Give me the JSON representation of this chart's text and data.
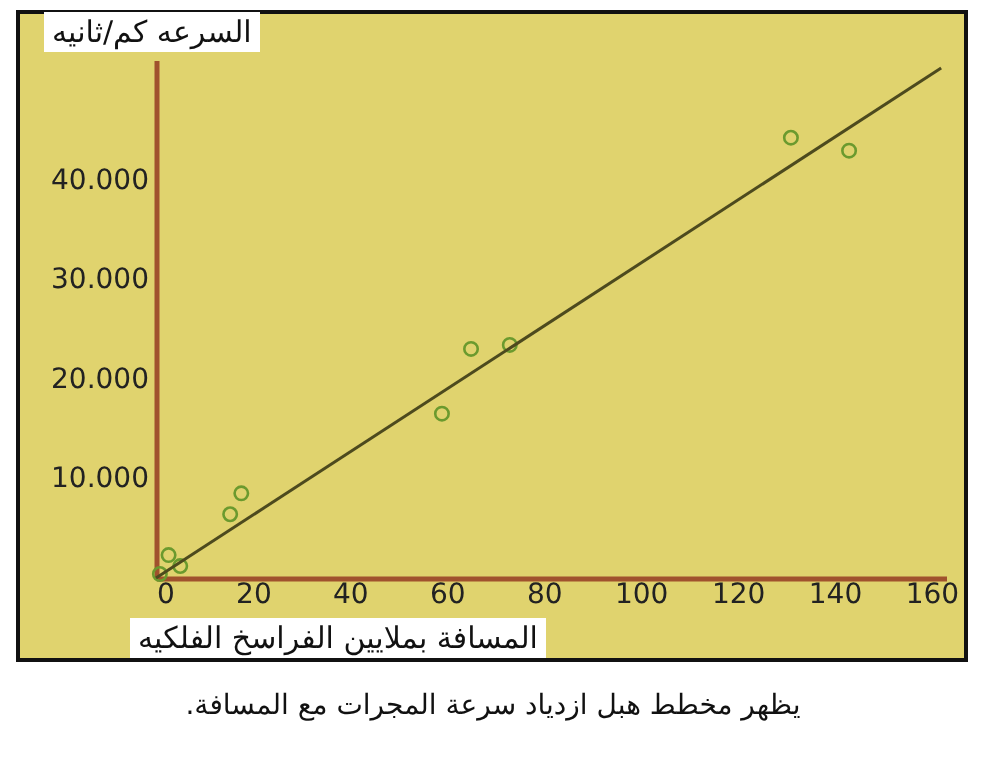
{
  "chart_data": {
    "type": "scatter",
    "xlabel": "المسافة بملايين الفراسخ الفلكيه",
    "ylabel": "السرعه كم/ثانيه",
    "annotations": [
      "يظهر مخطط هبل ازدياد سرعة المجرات مع المسافة."
    ],
    "xlim": [
      0,
      163
    ],
    "ylim": [
      0,
      52000
    ],
    "xticks": [
      0,
      20,
      40,
      60,
      80,
      100,
      120,
      140,
      160
    ],
    "yticks": [
      {
        "value": 10000,
        "label": "10.000"
      },
      {
        "value": 20000,
        "label": "20.000"
      },
      {
        "value": 30000,
        "label": "30.000"
      },
      {
        "value": 40000,
        "label": "40.000"
      }
    ],
    "grid": false,
    "series": [
      {
        "color": "#6b9a2e",
        "marker": "circle",
        "x": [
          0.8,
          2.6,
          5,
          15.3,
          17.6,
          59,
          65,
          73,
          131,
          143
        ],
        "values": [
          400,
          2300,
          1200,
          6400,
          8500,
          16500,
          23000,
          23400,
          44200,
          42900
        ]
      },
      {
        "type": "line",
        "color": "#4d4a1e",
        "x": [
          0,
          162
        ],
        "values": [
          0,
          51200
        ]
      }
    ]
  }
}
